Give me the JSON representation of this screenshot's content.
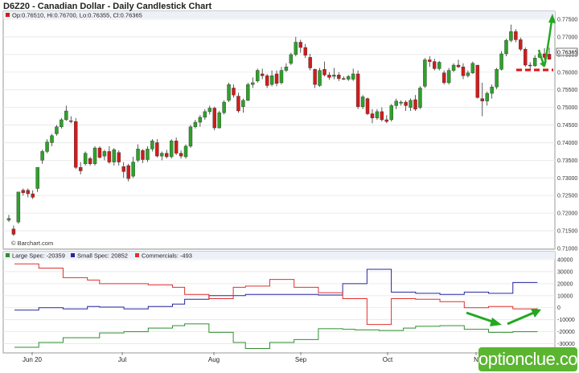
{
  "header": {
    "title": "D6Z20 - Canadian Dollar - Daily Candlestick Chart"
  },
  "price_panel": {
    "ohlc_text": "Op:0.76510, Hi:0.76700, Lo:0.76355, Cl:0.76365",
    "last_price": "0.76365",
    "source": "© Barchart.com",
    "y_tick_labels": [
      "0.77500",
      "0.77000",
      "0.76500",
      "0.76000",
      "0.75500",
      "0.75000",
      "0.74500",
      "0.74000",
      "0.73500",
      "0.73000",
      "0.72500",
      "0.72000",
      "0.71500",
      "0.71000"
    ]
  },
  "cot_panel": {
    "legend": [
      "Large Spec: -20359",
      "Small Spec: 20852",
      "Commercials: -493"
    ],
    "y_tick_labels": [
      "40000",
      "30000",
      "20000",
      "10000",
      "0",
      "-10000",
      "-20000",
      "-30000"
    ]
  },
  "x_tick_labels": [
    "Jun 20",
    "Jul",
    "Aug",
    "Sep",
    "Oct",
    "N"
  ],
  "watermark": "optionclue.com",
  "colors": {
    "up": "#2ea12a",
    "down": "#d01c1c",
    "large_spec": "#2f8f2f",
    "small_spec": "#2626a0",
    "commercials": "#e03030",
    "annotation": "#22a822",
    "dashed_level": "#e01010",
    "watermark_bg": "#5bb531",
    "panel_header_bg": "#f0f0f8"
  },
  "chart_data": [
    {
      "type": "candlestick",
      "title": "D6Z20 - Canadian Dollar - Daily Candlestick Chart",
      "ylim": [
        0.71,
        0.775
      ],
      "x_ticks": [
        "Jun 20",
        "Jul",
        "Aug",
        "Sep",
        "Oct",
        "N"
      ],
      "ohlc_last": {
        "open": 0.7651,
        "high": 0.767,
        "low": 0.76355,
        "close": 0.76365
      },
      "series": [
        {
          "name": "price",
          "values": [
            [
              0.718,
              0.7195,
              0.7175,
              0.7185
            ],
            [
              0.7155,
              0.7165,
              0.7135,
              0.714
            ],
            [
              0.7175,
              0.726,
              0.717,
              0.726
            ],
            [
              0.7265,
              0.727,
              0.725,
              0.7258
            ],
            [
              0.7265,
              0.727,
              0.7245,
              0.7255
            ],
            [
              0.7255,
              0.7265,
              0.724,
              0.7245
            ],
            [
              0.727,
              0.733,
              0.726,
              0.733
            ],
            [
              0.735,
              0.738,
              0.734,
              0.7375
            ],
            [
              0.7375,
              0.741,
              0.737,
              0.7402
            ],
            [
              0.74,
              0.7425,
              0.739,
              0.742
            ],
            [
              0.7425,
              0.745,
              0.742,
              0.7445
            ],
            [
              0.7445,
              0.747,
              0.744,
              0.7465
            ],
            [
              0.7465,
              0.7505,
              0.7462,
              0.749
            ],
            [
              0.7462,
              0.7475,
              0.7455,
              0.746
            ],
            [
              0.746,
              0.747,
              0.7325,
              0.733
            ],
            [
              0.733,
              0.7345,
              0.731,
              0.732
            ],
            [
              0.734,
              0.7375,
              0.7335,
              0.737
            ],
            [
              0.7355,
              0.736,
              0.7335,
              0.734
            ],
            [
              0.734,
              0.739,
              0.7335,
              0.7385
            ],
            [
              0.7385,
              0.739,
              0.7355,
              0.7358
            ],
            [
              0.7362,
              0.738,
              0.735,
              0.7375
            ],
            [
              0.7375,
              0.739,
              0.734,
              0.7345
            ],
            [
              0.7345,
              0.7385,
              0.7335,
              0.738
            ],
            [
              0.7372,
              0.7378,
              0.7335,
              0.7345
            ],
            [
              0.7332,
              0.7345,
              0.73,
              0.7318
            ],
            [
              0.7335,
              0.734,
              0.729,
              0.7298
            ],
            [
              0.7305,
              0.736,
              0.73,
              0.7345
            ],
            [
              0.735,
              0.7395,
              0.7345,
              0.7382
            ],
            [
              0.7378,
              0.7382,
              0.7342,
              0.7352
            ],
            [
              0.7352,
              0.739,
              0.7345,
              0.7382
            ],
            [
              0.7382,
              0.741,
              0.7375,
              0.7405
            ],
            [
              0.74,
              0.741,
              0.7358,
              0.7362
            ],
            [
              0.7362,
              0.7375,
              0.735,
              0.737
            ],
            [
              0.737,
              0.738,
              0.7355,
              0.736
            ],
            [
              0.736,
              0.741,
              0.7355,
              0.7405
            ],
            [
              0.7405,
              0.7415,
              0.7365,
              0.737
            ],
            [
              0.737,
              0.7378,
              0.7355,
              0.7362
            ],
            [
              0.736,
              0.7395,
              0.7355,
              0.739
            ],
            [
              0.739,
              0.745,
              0.7385,
              0.7445
            ],
            [
              0.7445,
              0.7465,
              0.744,
              0.7458
            ],
            [
              0.7458,
              0.7478,
              0.7445,
              0.7472
            ],
            [
              0.7472,
              0.7495,
              0.7465,
              0.7488
            ],
            [
              0.7488,
              0.7505,
              0.748,
              0.7498
            ],
            [
              0.7498,
              0.7502,
              0.7435,
              0.7442
            ],
            [
              0.7442,
              0.749,
              0.744,
              0.7485
            ],
            [
              0.7485,
              0.752,
              0.748,
              0.7515
            ],
            [
              0.752,
              0.757,
              0.7515,
              0.7565
            ],
            [
              0.7555,
              0.7565,
              0.7528,
              0.7535
            ],
            [
              0.7532,
              0.7542,
              0.7485,
              0.749
            ],
            [
              0.7502,
              0.7525,
              0.7485,
              0.752
            ],
            [
              0.752,
              0.757,
              0.7518,
              0.7565
            ],
            [
              0.7565,
              0.7585,
              0.7555,
              0.757
            ],
            [
              0.7575,
              0.761,
              0.757,
              0.7605
            ],
            [
              0.7595,
              0.761,
              0.758,
              0.759
            ],
            [
              0.759,
              0.7595,
              0.7555,
              0.7562
            ],
            [
              0.7565,
              0.7605,
              0.756,
              0.759
            ],
            [
              0.7595,
              0.7605,
              0.756,
              0.7568
            ],
            [
              0.757,
              0.7615,
              0.7565,
              0.7605
            ],
            [
              0.7605,
              0.7625,
              0.76,
              0.7615
            ],
            [
              0.7625,
              0.7655,
              0.762,
              0.765
            ],
            [
              0.765,
              0.77,
              0.7645,
              0.7685
            ],
            [
              0.7685,
              0.7692,
              0.7655,
              0.767
            ],
            [
              0.767,
              0.768,
              0.764,
              0.7648
            ],
            [
              0.7642,
              0.7652,
              0.7605,
              0.7612
            ],
            [
              0.7608,
              0.761,
              0.7555,
              0.7565
            ],
            [
              0.7562,
              0.7612,
              0.7558,
              0.7605
            ],
            [
              0.7608,
              0.763,
              0.7588,
              0.7592
            ],
            [
              0.7592,
              0.76,
              0.7578,
              0.7585
            ],
            [
              0.7588,
              0.7612,
              0.758,
              0.7592
            ],
            [
              0.7592,
              0.76,
              0.7575,
              0.7582
            ],
            [
              0.7582,
              0.7588,
              0.7578,
              0.758
            ],
            [
              0.758,
              0.7592,
              0.7575,
              0.7588
            ],
            [
              0.758,
              0.761,
              0.7575,
              0.7595
            ],
            [
              0.7595,
              0.7605,
              0.7495,
              0.7502
            ],
            [
              0.7502,
              0.7535,
              0.7495,
              0.753
            ],
            [
              0.7525,
              0.7528,
              0.7478,
              0.7482
            ],
            [
              0.7482,
              0.7495,
              0.7455,
              0.747
            ],
            [
              0.747,
              0.7495,
              0.7465,
              0.7488
            ],
            [
              0.7488,
              0.75,
              0.746,
              0.7465
            ],
            [
              0.7465,
              0.7478,
              0.7455,
              0.746
            ],
            [
              0.7465,
              0.751,
              0.746,
              0.7505
            ],
            [
              0.7505,
              0.7525,
              0.7495,
              0.7518
            ],
            [
              0.7512,
              0.752,
              0.7505,
              0.7515
            ],
            [
              0.7515,
              0.752,
              0.749,
              0.7505
            ],
            [
              0.75,
              0.7525,
              0.749,
              0.752
            ],
            [
              0.7522,
              0.7535,
              0.749,
              0.7495
            ],
            [
              0.75,
              0.756,
              0.7495,
              0.7555
            ],
            [
              0.756,
              0.764,
              0.7555,
              0.7635
            ],
            [
              0.7635,
              0.7645,
              0.7615,
              0.763
            ],
            [
              0.763,
              0.7638,
              0.7605,
              0.761
            ],
            [
              0.761,
              0.7632,
              0.7605,
              0.7628
            ],
            [
              0.7598,
              0.7605,
              0.7565,
              0.757
            ],
            [
              0.757,
              0.7612,
              0.7565,
              0.7605
            ],
            [
              0.7605,
              0.7625,
              0.76,
              0.762
            ],
            [
              0.762,
              0.7635,
              0.7612,
              0.7615
            ],
            [
              0.7615,
              0.7625,
              0.758,
              0.759
            ],
            [
              0.759,
              0.7605,
              0.7585,
              0.7598
            ],
            [
              0.7598,
              0.763,
              0.7595,
              0.7625
            ],
            [
              0.762,
              0.762,
              0.7525,
              0.7528
            ],
            [
              0.7525,
              0.757,
              0.7475,
              0.7518
            ],
            [
              0.7518,
              0.7545,
              0.7505,
              0.754
            ],
            [
              0.754,
              0.7565,
              0.7525,
              0.7558
            ],
            [
              0.7558,
              0.7612,
              0.7552,
              0.7608
            ],
            [
              0.7608,
              0.766,
              0.7605,
              0.7652
            ],
            [
              0.7652,
              0.7695,
              0.7645,
              0.769
            ],
            [
              0.769,
              0.7735,
              0.7685,
              0.7715
            ],
            [
              0.7715,
              0.7722,
              0.7685,
              0.7692
            ],
            [
              0.7692,
              0.7698,
              0.766,
              0.7665
            ],
            [
              0.7665,
              0.767,
              0.7615,
              0.762
            ],
            [
              0.762,
              0.7628,
              0.761,
              0.7618
            ],
            [
              0.7618,
              0.7648,
              0.7615,
              0.764
            ],
            [
              0.7642,
              0.766,
              0.764,
              0.7652
            ],
            [
              0.7652,
              0.7668,
              0.7635,
              0.7642
            ],
            [
              0.7651,
              0.767,
              0.76355,
              0.76365
            ]
          ]
        }
      ]
    },
    {
      "type": "line",
      "series_names": [
        "Large Spec: -20359",
        "Small Spec: 20852",
        "Commercials: -493"
      ],
      "ylim": [
        -37000,
        40000
      ],
      "x_ticks": [
        "Jun 20",
        "Jul",
        "Aug",
        "Sep",
        "Oct",
        "N"
      ],
      "series": [
        {
          "name": "Large Spec: -20359",
          "values": [
            -33000,
            -33000,
            -29000,
            -29000,
            -25000,
            -25000,
            -25000,
            -21000,
            -21000,
            -20000,
            -20000,
            -17000,
            -17000,
            -15000,
            -13500,
            -13500,
            -20500,
            -20500,
            -29000,
            -34000,
            -34000,
            -29000,
            -29000,
            -26500,
            -26500,
            -17500,
            -17500,
            -18000,
            -18500,
            -18500,
            -19000,
            -19000,
            -17000,
            -15500,
            -15500,
            -15000,
            -15000,
            -18000,
            -18000,
            -20500,
            -20500,
            -20000,
            -20000,
            -20359
          ]
        },
        {
          "name": "Small Spec: 20852",
          "values": [
            -2000,
            -2000,
            0,
            0,
            -1000,
            -1000,
            1000,
            500,
            500,
            -1000,
            -1000,
            1000,
            1000,
            3000,
            7000,
            7000,
            10000,
            10000,
            10000,
            11000,
            11000,
            11000,
            11000,
            11000,
            11000,
            10500,
            10500,
            20000,
            20000,
            32000,
            32000,
            13000,
            13000,
            12000,
            12000,
            11000,
            11000,
            13000,
            13000,
            12000,
            12000,
            21000,
            21000,
            20852
          ]
        },
        {
          "name": "Commercials: -493",
          "values": [
            36500,
            36500,
            33000,
            33000,
            25000,
            25000,
            23000,
            20000,
            20000,
            20000,
            20000,
            19000,
            19000,
            17000,
            11000,
            11000,
            7500,
            7500,
            17000,
            18000,
            18000,
            23500,
            23500,
            17000,
            17000,
            12500,
            12500,
            7500,
            7500,
            -14000,
            -14000,
            7500,
            7500,
            7000,
            7000,
            5000,
            5000,
            0,
            0,
            1000,
            1000,
            -1000,
            -1000,
            -493
          ]
        }
      ]
    }
  ]
}
